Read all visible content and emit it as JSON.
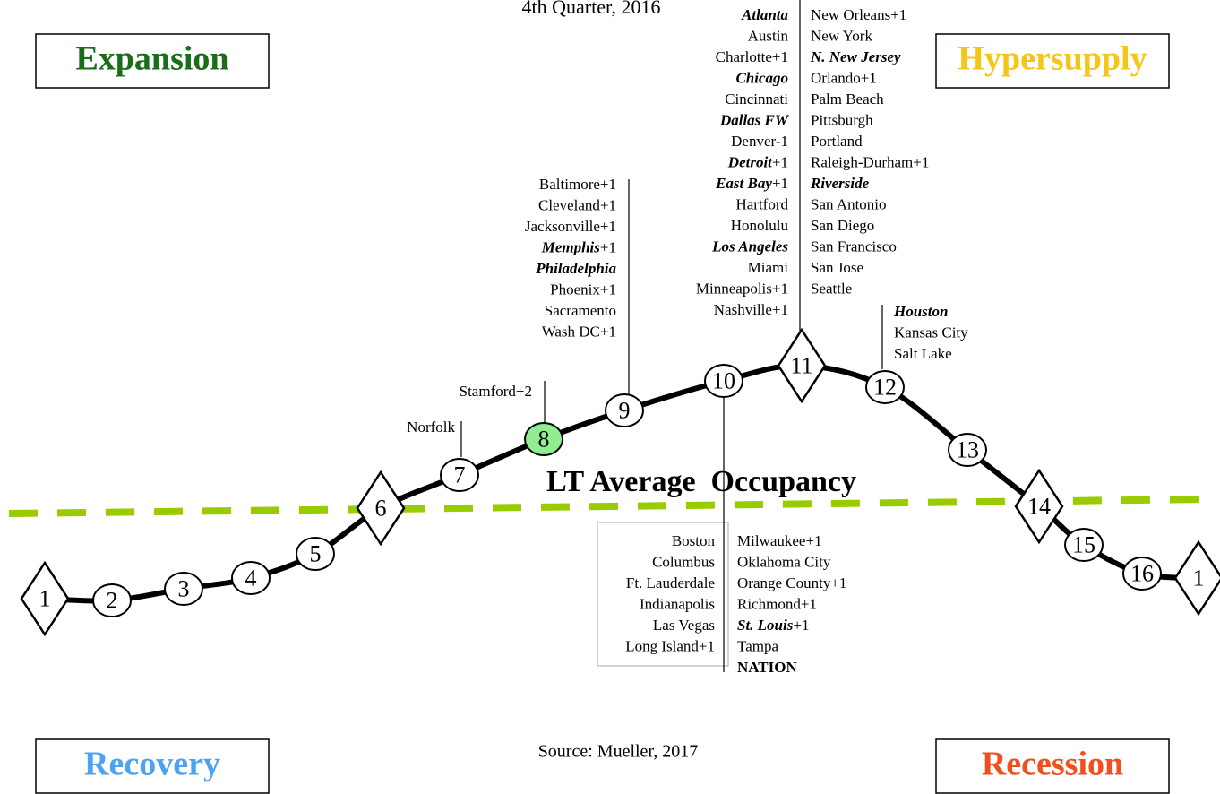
{
  "header": {
    "title": "4th Quarter, 2016"
  },
  "quadrants": [
    {
      "label": "Expansion",
      "color": "#1a6e1a"
    },
    {
      "label": "Hypersupply",
      "color": "#f5c518"
    },
    {
      "label": "Recovery",
      "color": "#4da3f0"
    },
    {
      "label": "Recession",
      "color": "#f0501e"
    }
  ],
  "occupancy_label": "LT Average  Occupancy",
  "source": "Source: Mueller, 2017",
  "nodes": [
    {
      "label": "1",
      "shape": "diamond"
    },
    {
      "label": "2",
      "shape": "circle"
    },
    {
      "label": "3",
      "shape": "circle"
    },
    {
      "label": "4",
      "shape": "circle"
    },
    {
      "label": "5",
      "shape": "circle"
    },
    {
      "label": "6",
      "shape": "diamond"
    },
    {
      "label": "7",
      "shape": "circle"
    },
    {
      "label": "8",
      "shape": "circle",
      "color": "#90ee90"
    },
    {
      "label": "9",
      "shape": "circle"
    },
    {
      "label": "10",
      "shape": "circle"
    },
    {
      "label": "11",
      "shape": "diamond"
    },
    {
      "label": "12",
      "shape": "circle"
    },
    {
      "label": "13",
      "shape": "circle"
    },
    {
      "label": "14",
      "shape": "diamond"
    },
    {
      "label": "15",
      "shape": "circle"
    },
    {
      "label": "16",
      "shape": "circle"
    },
    {
      "label": "1",
      "shape": "diamond"
    }
  ],
  "city_groups": [
    {
      "columns": [
        [
          {
            "name": "Norfolk"
          }
        ]
      ]
    },
    {
      "columns": [
        [
          {
            "name": "Stamford",
            "suffix": "+2"
          }
        ]
      ]
    },
    {
      "columns": [
        [
          {
            "name": "Baltimore",
            "suffix": "+1"
          },
          {
            "name": "Cleveland",
            "suffix": "+1"
          },
          {
            "name": "Jacksonville",
            "suffix": "+1"
          },
          {
            "name": "Memphis",
            "suffix": "+1",
            "style": "bold-italic"
          },
          {
            "name": "Philadelphia",
            "style": "bold-italic"
          },
          {
            "name": "Phoenix",
            "suffix": "+1"
          },
          {
            "name": "Sacramento"
          },
          {
            "name": "Wash DC",
            "suffix": "+1"
          }
        ]
      ]
    },
    {
      "columns": [
        [
          {
            "name": "Atlanta",
            "style": "bold-italic"
          },
          {
            "name": "Austin"
          },
          {
            "name": "Charlotte",
            "suffix": "+1"
          },
          {
            "name": "Chicago",
            "style": "bold-italic"
          },
          {
            "name": "Cincinnati"
          },
          {
            "name": "Dallas FW",
            "style": "bold-italic"
          },
          {
            "name": "Denver",
            "suffix": "-1"
          },
          {
            "name": "Detroit",
            "suffix": "+1",
            "style": "bold-italic"
          },
          {
            "name": "East Bay",
            "suffix": "+1",
            "style": "bold-italic"
          },
          {
            "name": "Hartford"
          },
          {
            "name": "Honolulu"
          },
          {
            "name": "Los Angeles",
            "style": "bold-italic"
          },
          {
            "name": "Miami"
          },
          {
            "name": "Minneapolis",
            "suffix": "+1"
          },
          {
            "name": "Nashville",
            "suffix": "+1"
          }
        ],
        [
          {
            "name": "New Orleans",
            "suffix": "+1"
          },
          {
            "name": "New York"
          },
          {
            "name": "N. New Jersey",
            "style": "bold-italic"
          },
          {
            "name": "Orlando",
            "suffix": "+1"
          },
          {
            "name": "Palm Beach"
          },
          {
            "name": "Pittsburgh"
          },
          {
            "name": "Portland"
          },
          {
            "name": "Raleigh-Durham",
            "suffix": "+1"
          },
          {
            "name": "Riverside",
            "style": "bold-italic"
          },
          {
            "name": "San Antonio"
          },
          {
            "name": "San Diego"
          },
          {
            "name": "San Francisco"
          },
          {
            "name": "San Jose"
          },
          {
            "name": "Seattle"
          }
        ]
      ]
    },
    {
      "columns": [
        [
          {
            "name": "Houston",
            "style": "bold-italic"
          },
          {
            "name": "Kansas City"
          },
          {
            "name": "Salt Lake"
          }
        ]
      ]
    },
    {
      "columns": [
        [
          {
            "name": "Boston"
          },
          {
            "name": "Columbus"
          },
          {
            "name": "Ft. Lauderdale"
          },
          {
            "name": "Indianapolis"
          },
          {
            "name": "Las Vegas"
          },
          {
            "name": "Long Island",
            "suffix": "+1"
          }
        ],
        [
          {
            "name": "Milwaukee",
            "suffix": "+1"
          },
          {
            "name": "Oklahoma City"
          },
          {
            "name": "Orange County",
            "suffix": "+1"
          },
          {
            "name": "Richmond",
            "suffix": "+1"
          },
          {
            "name": "St. Louis",
            "suffix": "+1",
            "style": "bold-italic"
          },
          {
            "name": "Tampa"
          },
          {
            "name": "NATION",
            "style": "bold"
          }
        ]
      ]
    }
  ]
}
